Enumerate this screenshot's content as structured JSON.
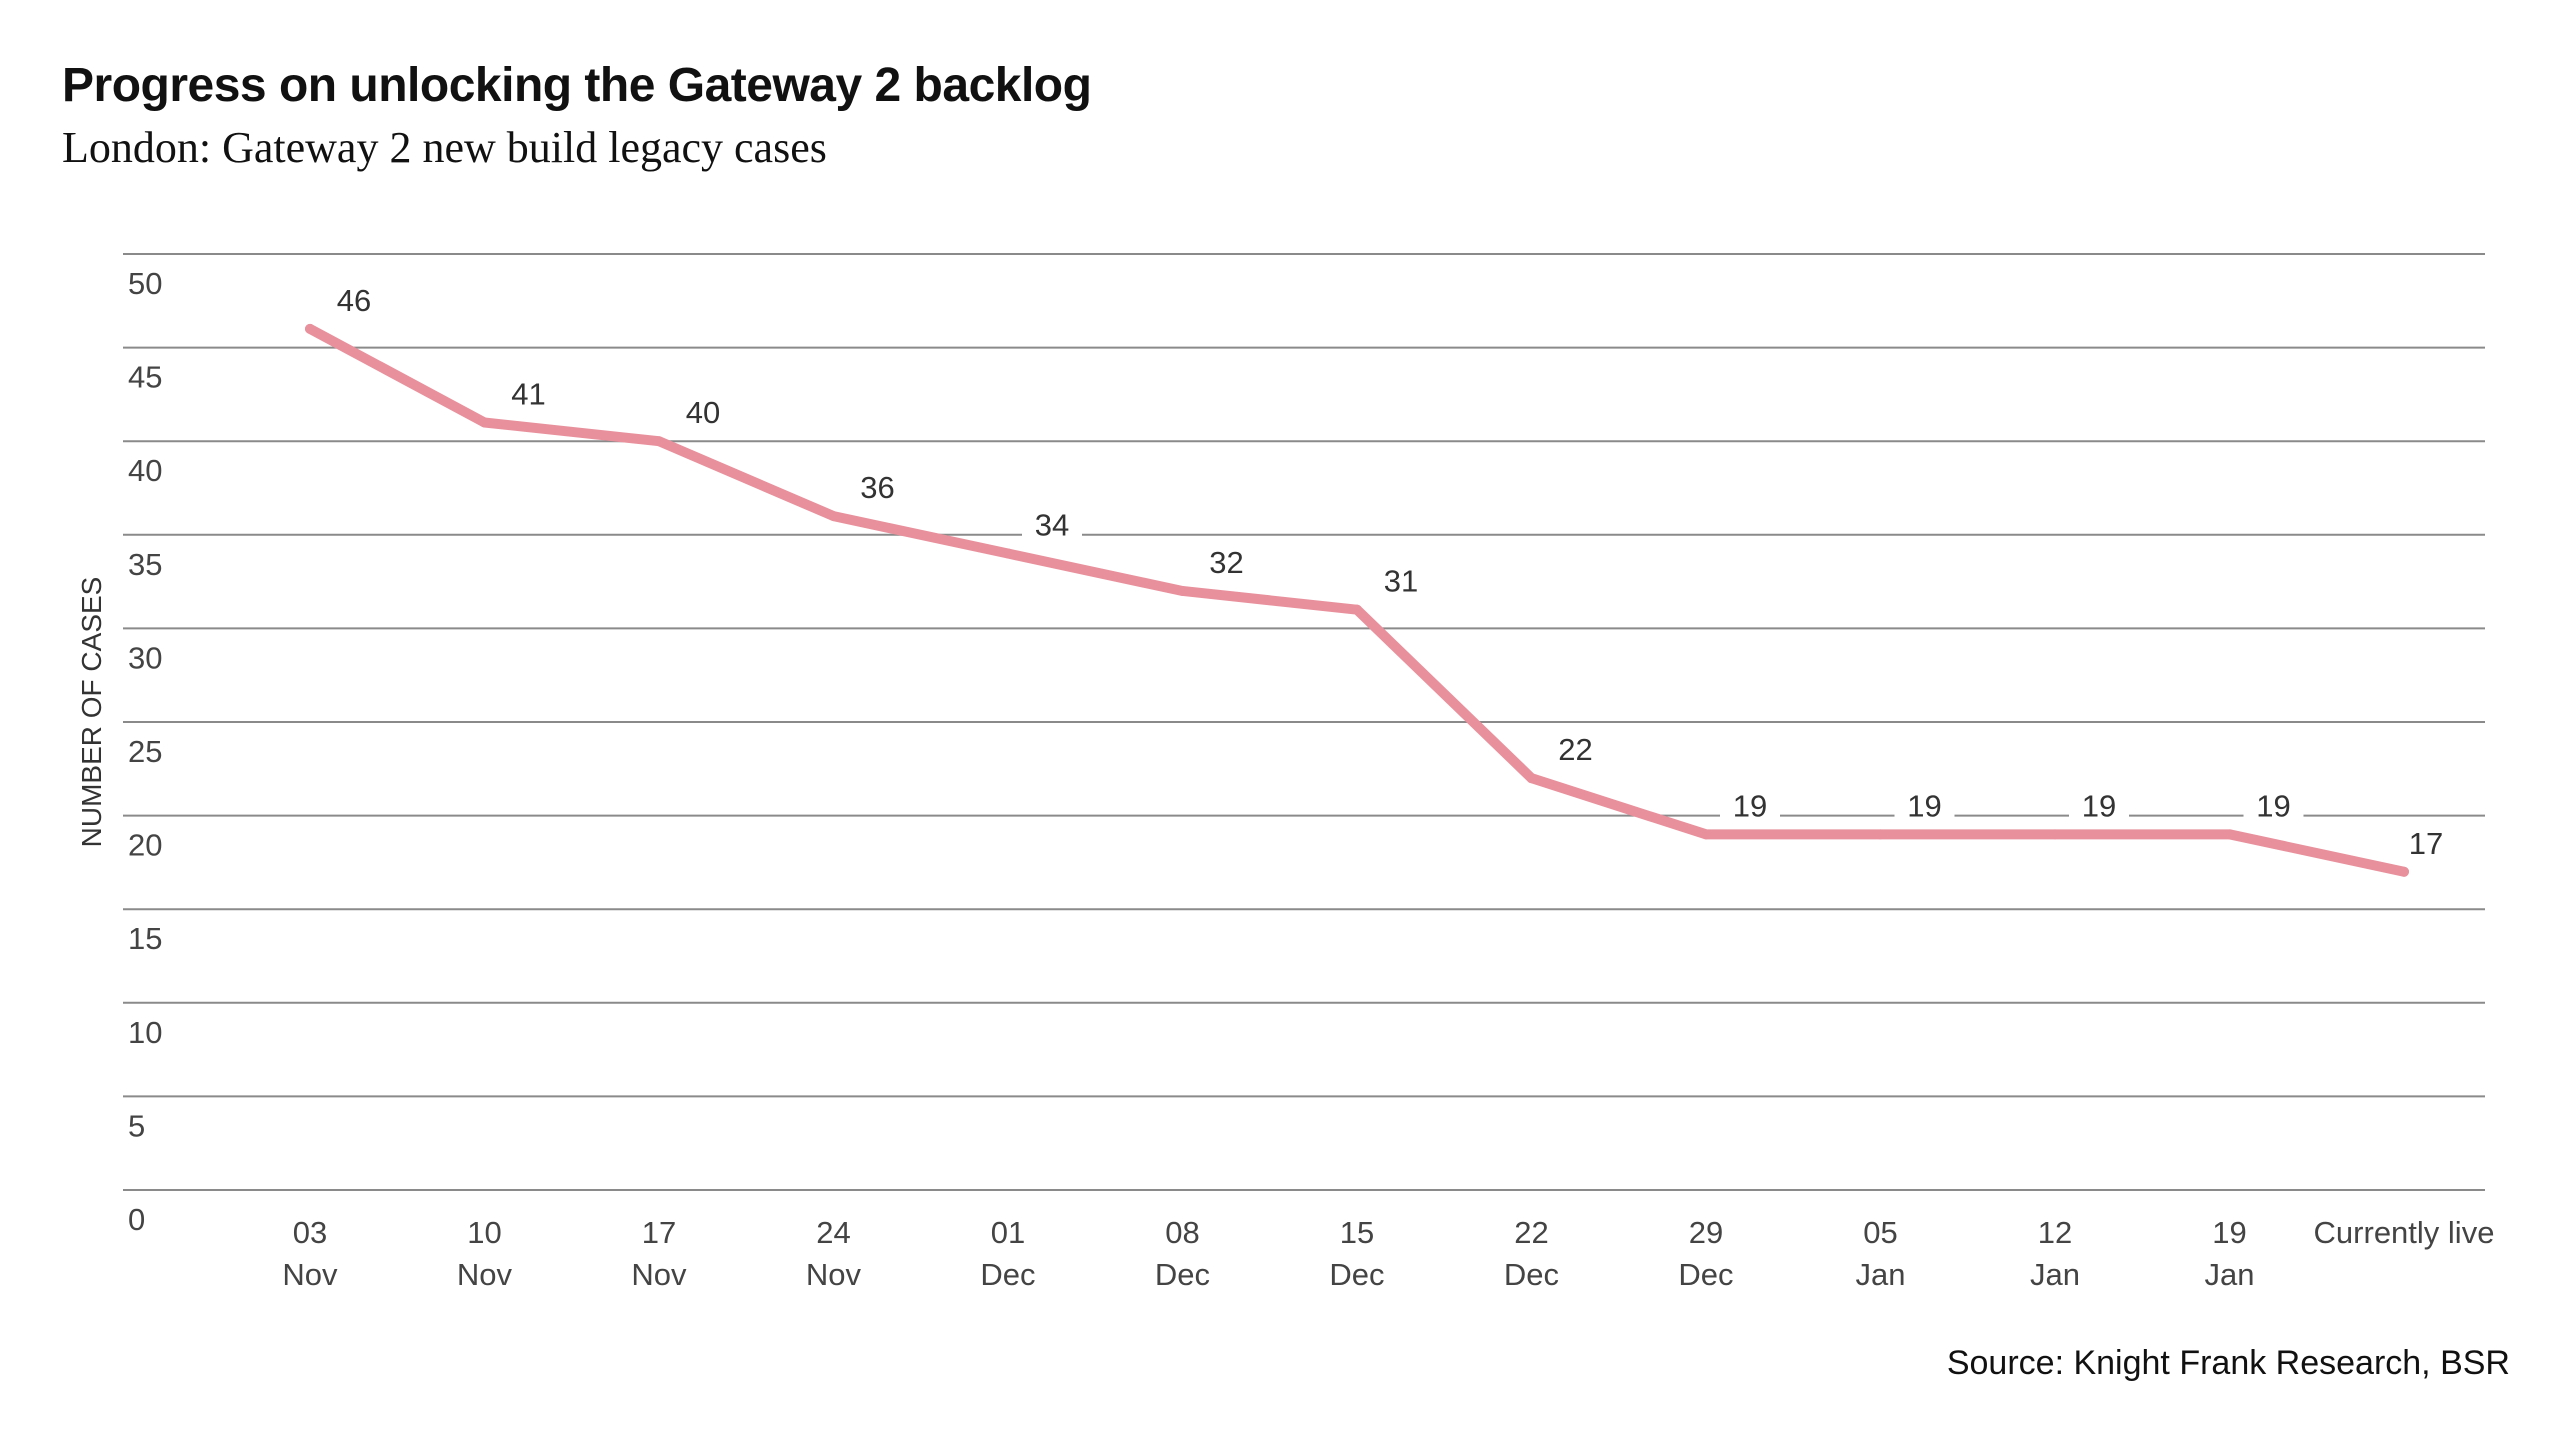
{
  "chart_data": {
    "type": "line",
    "title": "Progress on unlocking the Gateway 2 backlog",
    "subtitle": "London: Gateway 2 new build legacy cases",
    "ylabel": "NUMBER OF CASES",
    "xlabel": "",
    "ylim": [
      0,
      50
    ],
    "yticks": [
      "0",
      "5",
      "10",
      "15",
      "20",
      "25",
      "30",
      "35",
      "40",
      "45",
      "50"
    ],
    "grid": true,
    "categories": [
      [
        "03",
        "Nov"
      ],
      [
        "10",
        "Nov"
      ],
      [
        "17",
        "Nov"
      ],
      [
        "24",
        "Nov"
      ],
      [
        "01",
        "Dec"
      ],
      [
        "08",
        "Dec"
      ],
      [
        "15",
        "Dec"
      ],
      [
        "22",
        "Dec"
      ],
      [
        "29",
        "Dec"
      ],
      [
        "05",
        "Jan"
      ],
      [
        "12",
        "Jan"
      ],
      [
        "19",
        "Jan"
      ],
      [
        "Currently live",
        ""
      ]
    ],
    "series": [
      {
        "values": [
          46,
          41,
          40,
          36,
          34,
          32,
          31,
          22,
          19,
          19,
          19,
          19,
          17
        ],
        "color": "#e8909c"
      }
    ],
    "data_labels": true,
    "source": "Source: Knight Frank Research, BSR"
  }
}
